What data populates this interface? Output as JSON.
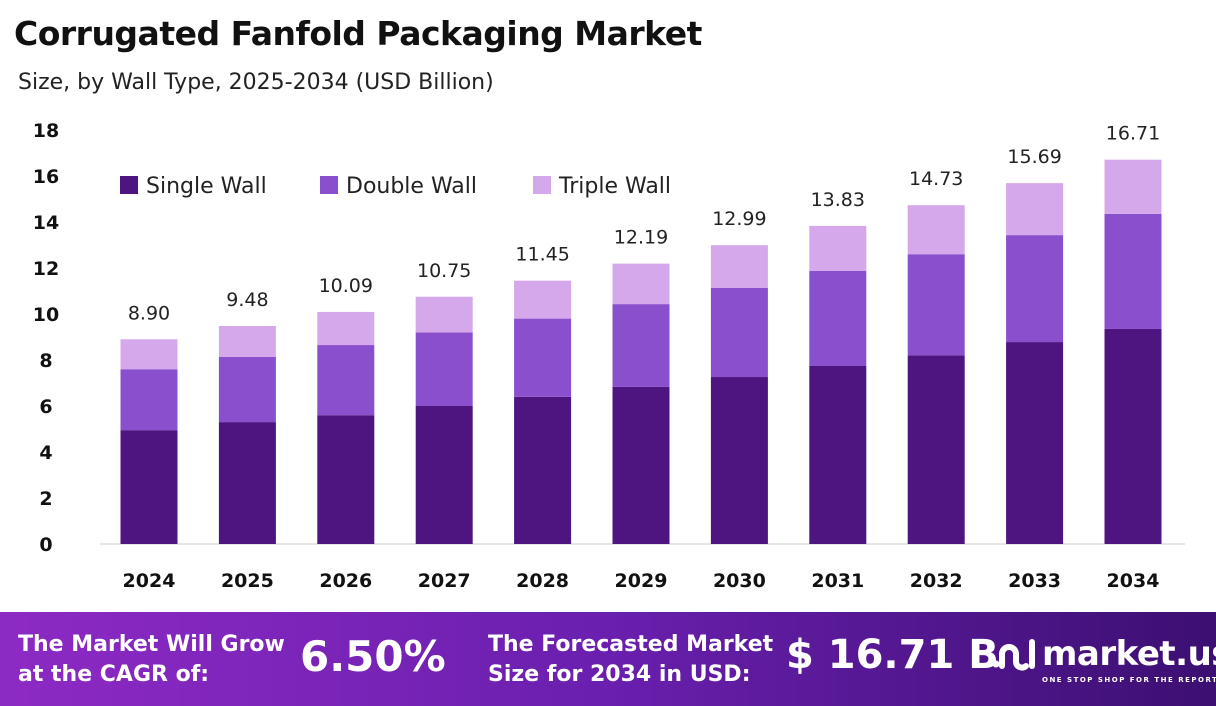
{
  "header": {
    "title": "Corrugated Fanfold Packaging Market",
    "subtitle": "Size, by Wall Type, 2025-2034 (USD Billion)"
  },
  "chart_data": {
    "type": "bar",
    "stacked": true,
    "categories": [
      "2024",
      "2025",
      "2026",
      "2027",
      "2028",
      "2029",
      "2030",
      "2031",
      "2032",
      "2033",
      "2034"
    ],
    "series": [
      {
        "name": "Single Wall",
        "color": "#4e1580",
        "values": [
          4.95,
          5.3,
          5.6,
          6.0,
          6.4,
          6.83,
          7.26,
          7.74,
          8.2,
          8.78,
          9.35
        ]
      },
      {
        "name": "Double Wall",
        "color": "#8a4fcc",
        "values": [
          2.65,
          2.83,
          3.05,
          3.2,
          3.4,
          3.6,
          3.87,
          4.13,
          4.4,
          4.65,
          5.0
        ]
      },
      {
        "name": "Triple Wall",
        "color": "#d4a8ea",
        "values": [
          1.3,
          1.35,
          1.44,
          1.55,
          1.65,
          1.76,
          1.86,
          1.96,
          2.13,
          2.26,
          2.36
        ]
      }
    ],
    "totals": [
      "8.90",
      "9.48",
      "10.09",
      "10.75",
      "11.45",
      "12.19",
      "12.99",
      "13.83",
      "14.73",
      "15.69",
      "16.71"
    ],
    "ylim": [
      0,
      18
    ],
    "yticks": [
      0,
      2,
      4,
      6,
      8,
      10,
      12,
      14,
      16,
      18
    ],
    "grid": false,
    "legend": "top-left"
  },
  "footer": {
    "cagr_label_1": "The Market Will Grow",
    "cagr_label_2": "at the CAGR of:",
    "cagr_value": "6.50%",
    "forecast_label_1": "The Forecasted Market",
    "forecast_label_2": "Size for 2034 in USD:",
    "forecast_value": "$ 16.71 B",
    "logo_name": "market.us",
    "logo_tagline": "ONE STOP SHOP FOR THE REPORTS"
  }
}
